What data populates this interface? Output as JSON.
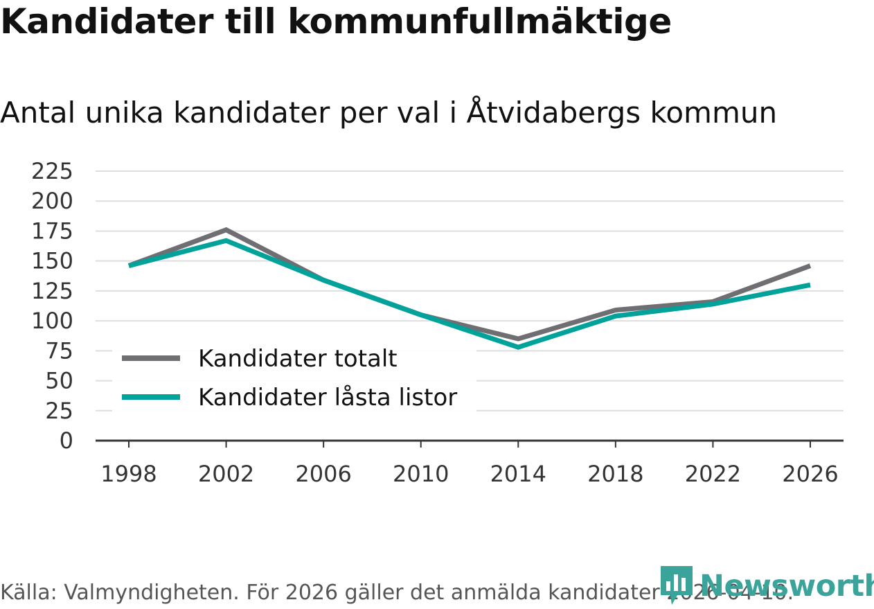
{
  "title": "Kandidater till kommunfullmäktige",
  "subtitle": "Antal unika kandidater per val i Åtvidabergs kommun",
  "source": "Källa: Valmyndigheten. För 2026 gäller det anmälda kandidater 2026-04-10.",
  "brand": {
    "name": "Newsworthy",
    "logo_icon": "newsworthy-logo-icon",
    "color": "#3aa39a"
  },
  "chart_data": {
    "type": "line",
    "x": [
      "1998",
      "2002",
      "2006",
      "2010",
      "2014",
      "2018",
      "2022",
      "2026"
    ],
    "ylim": [
      0,
      225
    ],
    "yticks": [
      "0",
      "25",
      "50",
      "75",
      "100",
      "125",
      "150",
      "175",
      "200",
      "225"
    ],
    "grid": true,
    "legend_position": "bottom-left",
    "series": [
      {
        "name": "Kandidater totalt",
        "color": "#6f6e72",
        "values": [
          146,
          176,
          134,
          105,
          85,
          109,
          116,
          146
        ]
      },
      {
        "name": "Kandidater låsta listor",
        "color": "#00a29a",
        "values": [
          146,
          167,
          134,
          105,
          78,
          104,
          114,
          130
        ]
      }
    ]
  }
}
